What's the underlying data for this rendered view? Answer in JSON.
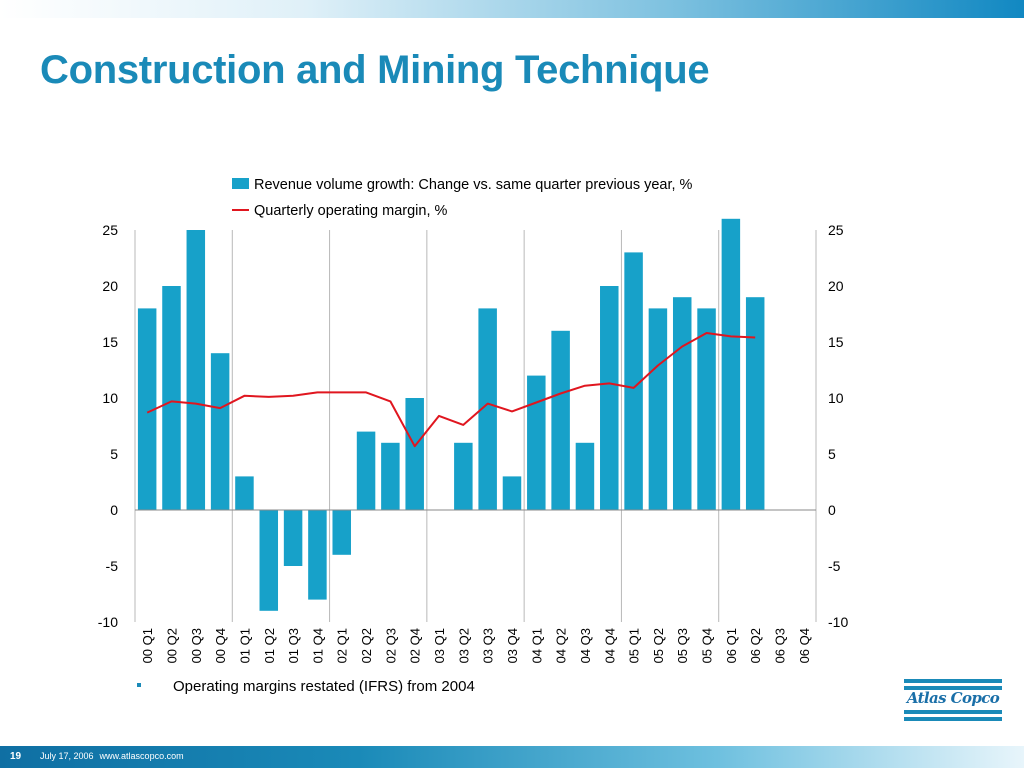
{
  "slide": {
    "title": "Construction and Mining Technique",
    "note": "Operating margins restated (IFRS) from 2004",
    "page_number": "19",
    "date": "July 17, 2006",
    "url": "www.atlascopco.com",
    "logo_text": "Atlas Copco"
  },
  "colors": {
    "title": "#1a8ab8",
    "bar": "#17a1c9",
    "line": "#e0161f",
    "grid": "#b8b8b8"
  },
  "chart_data": {
    "type": "bar",
    "title": "",
    "xlabel": "",
    "ylabel": "",
    "ylim": [
      -10,
      25
    ],
    "yticks": [
      25,
      20,
      15,
      10,
      5,
      0,
      -5,
      -10
    ],
    "y2lim": [
      -10,
      25
    ],
    "grid": "vertical dividers between years",
    "legend": "top",
    "categories": [
      "00 Q1",
      "00 Q2",
      "00 Q3",
      "00 Q4",
      "01 Q1",
      "01 Q2",
      "01 Q3",
      "01 Q4",
      "02 Q1",
      "02 Q2",
      "02 Q3",
      "02 Q4",
      "03 Q1",
      "03 Q2",
      "03 Q3",
      "03 Q4",
      "04 Q1",
      "04 Q2",
      "04 Q3",
      "04 Q4",
      "05 Q1",
      "05 Q2",
      "05 Q3",
      "05 Q4",
      "06 Q1",
      "06 Q2",
      "06 Q3",
      "06 Q4"
    ],
    "series": [
      {
        "name": "Revenue volume growth: Change vs. same quarter previous year, %",
        "type": "bar",
        "values": [
          18,
          20,
          25,
          14,
          3,
          -9,
          -5,
          -8,
          -4,
          7,
          6,
          10,
          0,
          6,
          18,
          3,
          12,
          16,
          6,
          20,
          23,
          18,
          19,
          18,
          26,
          19,
          null,
          null
        ]
      },
      {
        "name": "Quarterly operating margin, %",
        "type": "line",
        "values": [
          8.7,
          9.7,
          9.5,
          9.1,
          10.2,
          10.1,
          10.2,
          10.5,
          10.5,
          10.5,
          9.7,
          5.7,
          8.4,
          7.6,
          9.5,
          8.8,
          9.6,
          10.4,
          11.1,
          11.3,
          10.9,
          12.9,
          14.6,
          15.8,
          15.5,
          15.4,
          null,
          null
        ]
      }
    ]
  }
}
